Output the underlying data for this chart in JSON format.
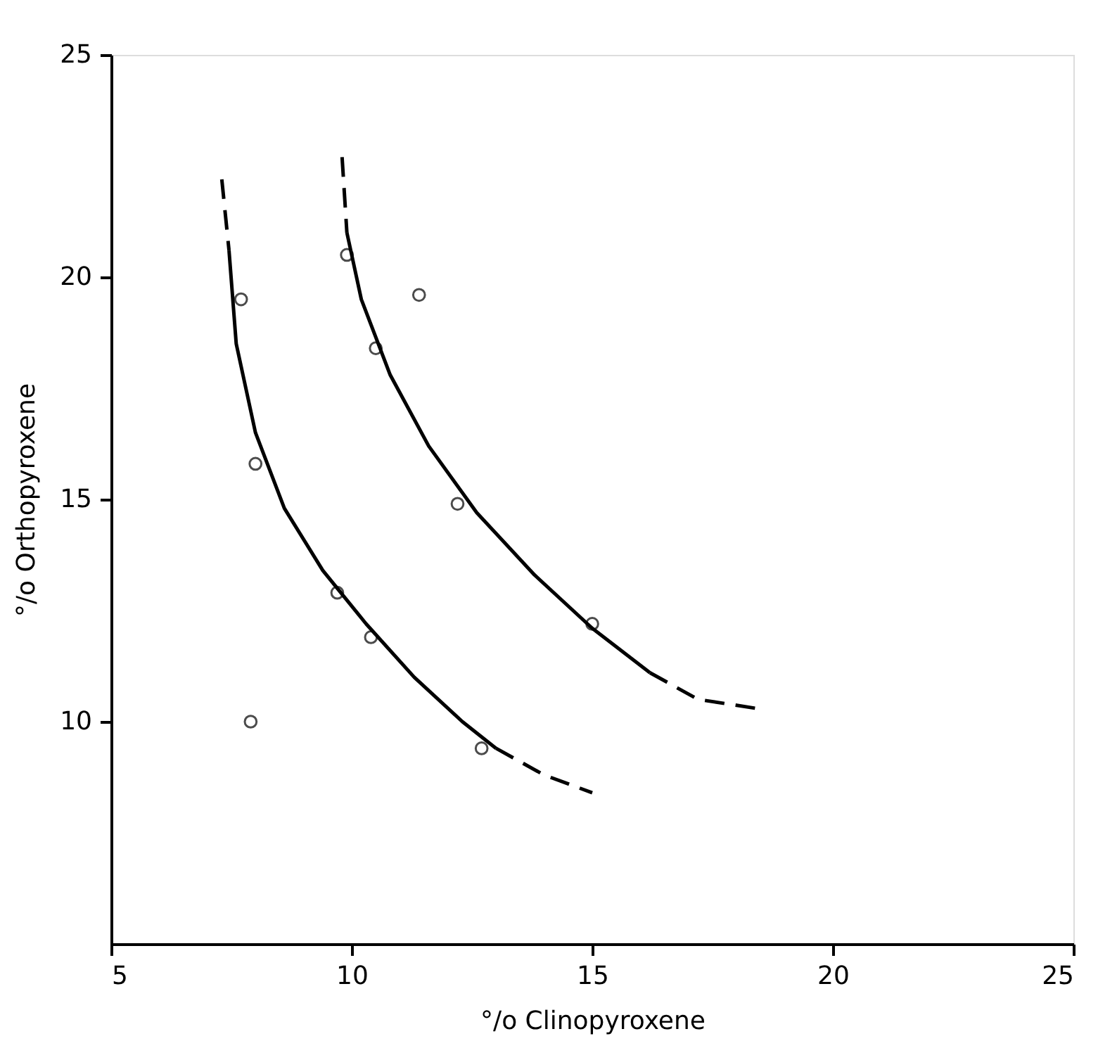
{
  "chart_data": {
    "type": "scatter",
    "xlabel": "°/o  Clinopyroxene",
    "ylabel": "°/o  Orthopyroxene",
    "xlim": [
      5,
      25
    ],
    "ylim": [
      5,
      25
    ],
    "xticks": [
      5,
      10,
      15,
      20,
      25
    ],
    "yticks": [
      10,
      15,
      20,
      25
    ],
    "grid": false,
    "series": [
      {
        "marker": "circle",
        "color": "#000000",
        "x": [
          7.7,
          8.0,
          7.9,
          9.7,
          10.4,
          12.7,
          9.9,
          10.5,
          11.4,
          12.2,
          15.0
        ],
        "values": [
          19.5,
          15.8,
          10.0,
          12.9,
          11.9,
          9.4,
          20.5,
          18.4,
          19.6,
          14.9,
          12.2
        ]
      },
      {
        "type": "line",
        "color": "#000000",
        "line_style": "dashed",
        "x": [
          7.3,
          7.45
        ],
        "values": [
          22.2,
          20.6
        ]
      },
      {
        "type": "line",
        "color": "#000000",
        "line_style": "solid",
        "x": [
          7.45,
          7.6,
          8.0,
          8.6,
          9.4,
          10.3,
          11.3,
          12.3,
          13.0
        ],
        "values": [
          20.6,
          18.5,
          16.5,
          14.8,
          13.4,
          12.2,
          11.0,
          10.0,
          9.4
        ]
      },
      {
        "type": "line",
        "color": "#000000",
        "line_style": "dashed",
        "x": [
          13.0,
          14.0,
          15.0
        ],
        "values": [
          9.4,
          8.8,
          8.4
        ]
      },
      {
        "type": "line",
        "color": "#000000",
        "line_style": "dashed",
        "x": [
          9.8,
          9.9
        ],
        "values": [
          22.7,
          21.0
        ]
      },
      {
        "type": "line",
        "color": "#000000",
        "line_style": "solid",
        "x": [
          9.9,
          10.2,
          10.8,
          11.6,
          12.6,
          13.8,
          15.0,
          16.2
        ],
        "values": [
          21.0,
          19.5,
          17.8,
          16.2,
          14.7,
          13.3,
          12.1,
          11.1
        ]
      },
      {
        "type": "line",
        "color": "#000000",
        "line_style": "dashed",
        "x": [
          16.2,
          17.2,
          18.4
        ],
        "values": [
          11.1,
          10.5,
          10.3
        ]
      }
    ]
  }
}
